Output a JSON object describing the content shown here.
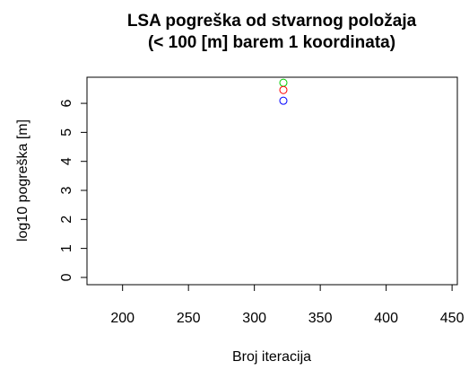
{
  "chart_data": {
    "type": "scatter",
    "title": [
      "LSA pogreška od stvarnog položaja",
      "(< 100 [m] barem 1 koordinata)"
    ],
    "x_label": "Broj iteracija",
    "y_label": "log10 pogreška [m]",
    "series": [
      {
        "color": "#00cc00",
        "x": [
          322
        ],
        "values": [
          6.71
        ]
      },
      {
        "color": "#ff0000",
        "x": [
          322
        ],
        "values": [
          6.46
        ]
      },
      {
        "color": "#0000ff",
        "x": [
          322
        ],
        "values": [
          6.09
        ]
      }
    ],
    "xlim": [
      173,
      454
    ],
    "xticks": [
      200,
      250,
      300,
      350,
      400,
      450
    ],
    "ylim": [
      -0.25,
      6.9
    ],
    "yticks": [
      0,
      1,
      2,
      3,
      4,
      5,
      6
    ]
  }
}
